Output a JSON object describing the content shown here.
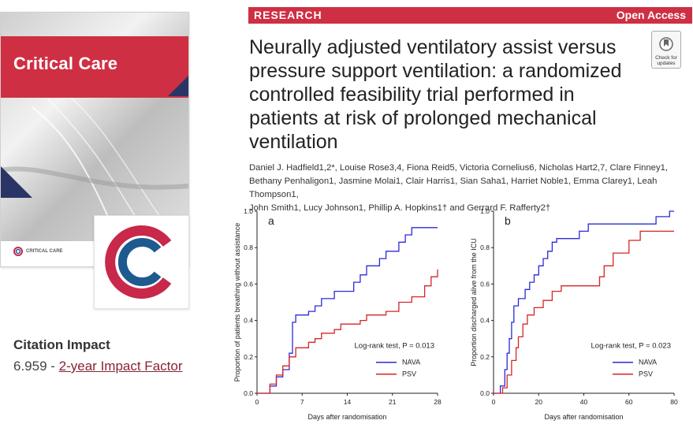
{
  "cover": {
    "journal_title": "Critical Care",
    "footer_text": "CRITICAL CARE"
  },
  "logo": {
    "name": "critical-care-logo",
    "colors": {
      "red": "#c8284a",
      "blue": "#1f5a8f"
    }
  },
  "citation": {
    "title": "Citation Impact",
    "value": "6.959",
    "separator": " - ",
    "link_text": "2-year Impact Factor"
  },
  "article": {
    "section": "RESEARCH",
    "access": "Open Access",
    "title": "Neurally adjusted ventilatory assist versus pressure support ventilation: a randomized controlled feasibility trial performed in patients at risk of prolonged mechanical ventilation",
    "check_badge": "Check for updates",
    "authors_line1": "Daniel J. Hadfield1,2*, Louise Rose3,4, Fiona Reid5, Victoria Cornelius6, Nicholas Hart2,7, Clare Finney1,",
    "authors_line2": "Bethany Penhaligon1, Jasmine Molai1, Clair Harris1, Sian Saha1, Harriet Noble1, Emma Clarey1, Leah Thompson1,",
    "authors_line3": "John Smith1, Lucy Johnson1, Phillip A. Hopkins1† and Gerrard F. Rafferty2†"
  },
  "colors": {
    "accent": "#cf2f43",
    "nava": "#2b2bd6",
    "psv": "#d42525"
  },
  "chart_data": [
    {
      "type": "line",
      "panel": "a",
      "xlabel": "Days after randomisation",
      "ylabel": "Proportion of patients breathing without assistance",
      "xlim": [
        0,
        28
      ],
      "ylim": [
        0,
        1.0
      ],
      "xticks": [
        0,
        7,
        14,
        21,
        28
      ],
      "yticks": [
        "0.0",
        "0.2",
        "0.4",
        "0.6",
        "0.8",
        "1.0"
      ],
      "annotation": "Log-rank test, P = 0.013",
      "series": [
        {
          "name": "NAVA",
          "color": "#2b2bd6",
          "points": [
            [
              0,
              0
            ],
            [
              2,
              0
            ],
            [
              2,
              0.04
            ],
            [
              3,
              0.04
            ],
            [
              3,
              0.09
            ],
            [
              4,
              0.09
            ],
            [
              4,
              0.13
            ],
            [
              5,
              0.13
            ],
            [
              5,
              0.22
            ],
            [
              5.5,
              0.22
            ],
            [
              5.5,
              0.39
            ],
            [
              6,
              0.39
            ],
            [
              6,
              0.43
            ],
            [
              8,
              0.43
            ],
            [
              8,
              0.45
            ],
            [
              9,
              0.45
            ],
            [
              9,
              0.48
            ],
            [
              10,
              0.48
            ],
            [
              10,
              0.52
            ],
            [
              12,
              0.52
            ],
            [
              12,
              0.56
            ],
            [
              15,
              0.56
            ],
            [
              15,
              0.61
            ],
            [
              16,
              0.61
            ],
            [
              16,
              0.65
            ],
            [
              17,
              0.65
            ],
            [
              17,
              0.7
            ],
            [
              19,
              0.7
            ],
            [
              19,
              0.74
            ],
            [
              20,
              0.74
            ],
            [
              20,
              0.78
            ],
            [
              22,
              0.78
            ],
            [
              22,
              0.83
            ],
            [
              23,
              0.83
            ],
            [
              23,
              0.87
            ],
            [
              24,
              0.87
            ],
            [
              24,
              0.91
            ],
            [
              28,
              0.91
            ]
          ]
        },
        {
          "name": "PSV",
          "color": "#d42525",
          "points": [
            [
              0,
              0
            ],
            [
              2,
              0
            ],
            [
              2,
              0.05
            ],
            [
              3,
              0.05
            ],
            [
              3,
              0.1
            ],
            [
              4,
              0.1
            ],
            [
              4,
              0.15
            ],
            [
              5,
              0.15
            ],
            [
              5,
              0.2
            ],
            [
              6,
              0.2
            ],
            [
              6,
              0.25
            ],
            [
              8,
              0.25
            ],
            [
              8,
              0.28
            ],
            [
              9,
              0.28
            ],
            [
              9,
              0.3
            ],
            [
              10,
              0.3
            ],
            [
              10,
              0.33
            ],
            [
              12,
              0.33
            ],
            [
              12,
              0.35
            ],
            [
              13,
              0.35
            ],
            [
              13,
              0.38
            ],
            [
              16,
              0.38
            ],
            [
              16,
              0.4
            ],
            [
              17,
              0.4
            ],
            [
              17,
              0.43
            ],
            [
              20,
              0.43
            ],
            [
              20,
              0.45
            ],
            [
              22,
              0.45
            ],
            [
              22,
              0.5
            ],
            [
              24,
              0.5
            ],
            [
              24,
              0.53
            ],
            [
              26,
              0.53
            ],
            [
              26,
              0.59
            ],
            [
              27,
              0.59
            ],
            [
              27,
              0.64
            ],
            [
              28,
              0.64
            ],
            [
              28,
              0.68
            ]
          ]
        }
      ]
    },
    {
      "type": "line",
      "panel": "b",
      "xlabel": "Days after randomisation",
      "ylabel": "Proportion discharged alive from the ICU",
      "xlim": [
        0,
        80
      ],
      "ylim": [
        0,
        1.0
      ],
      "xticks": [
        0,
        20,
        40,
        60,
        80
      ],
      "yticks": [
        "0.0",
        "0.2",
        "0.4",
        "0.6",
        "0.8",
        "1.0"
      ],
      "annotation": "Log-rank test, P = 0.023",
      "series": [
        {
          "name": "NAVA",
          "color": "#2b2bd6",
          "points": [
            [
              0,
              0
            ],
            [
              3,
              0
            ],
            [
              3,
              0.04
            ],
            [
              5,
              0.04
            ],
            [
              5,
              0.13
            ],
            [
              6,
              0.13
            ],
            [
              6,
              0.22
            ],
            [
              7,
              0.22
            ],
            [
              7,
              0.3
            ],
            [
              8,
              0.3
            ],
            [
              8,
              0.39
            ],
            [
              9,
              0.39
            ],
            [
              9,
              0.48
            ],
            [
              11,
              0.48
            ],
            [
              11,
              0.52
            ],
            [
              14,
              0.52
            ],
            [
              14,
              0.57
            ],
            [
              16,
              0.57
            ],
            [
              16,
              0.61
            ],
            [
              18,
              0.61
            ],
            [
              18,
              0.65
            ],
            [
              20,
              0.65
            ],
            [
              20,
              0.7
            ],
            [
              22,
              0.7
            ],
            [
              22,
              0.74
            ],
            [
              24,
              0.74
            ],
            [
              24,
              0.78
            ],
            [
              26,
              0.78
            ],
            [
              26,
              0.83
            ],
            [
              28,
              0.83
            ],
            [
              28,
              0.85
            ],
            [
              38,
              0.85
            ],
            [
              38,
              0.89
            ],
            [
              42,
              0.89
            ],
            [
              42,
              0.93
            ],
            [
              72,
              0.93
            ],
            [
              72,
              0.97
            ],
            [
              78,
              0.97
            ],
            [
              78,
              1.0
            ],
            [
              80,
              1.0
            ]
          ]
        },
        {
          "name": "PSV",
          "color": "#d42525",
          "points": [
            [
              0,
              0
            ],
            [
              4,
              0
            ],
            [
              4,
              0.03
            ],
            [
              6,
              0.03
            ],
            [
              6,
              0.1
            ],
            [
              8,
              0.1
            ],
            [
              8,
              0.18
            ],
            [
              10,
              0.18
            ],
            [
              10,
              0.25
            ],
            [
              11,
              0.25
            ],
            [
              11,
              0.31
            ],
            [
              13,
              0.31
            ],
            [
              13,
              0.38
            ],
            [
              15,
              0.38
            ],
            [
              15,
              0.43
            ],
            [
              18,
              0.43
            ],
            [
              18,
              0.47
            ],
            [
              22,
              0.47
            ],
            [
              22,
              0.51
            ],
            [
              26,
              0.51
            ],
            [
              26,
              0.56
            ],
            [
              30,
              0.56
            ],
            [
              30,
              0.59
            ],
            [
              47,
              0.59
            ],
            [
              47,
              0.64
            ],
            [
              49,
              0.64
            ],
            [
              49,
              0.7
            ],
            [
              53,
              0.7
            ],
            [
              53,
              0.77
            ],
            [
              60,
              0.77
            ],
            [
              60,
              0.84
            ],
            [
              65,
              0.84
            ],
            [
              65,
              0.89
            ],
            [
              80,
              0.89
            ]
          ]
        }
      ]
    }
  ]
}
